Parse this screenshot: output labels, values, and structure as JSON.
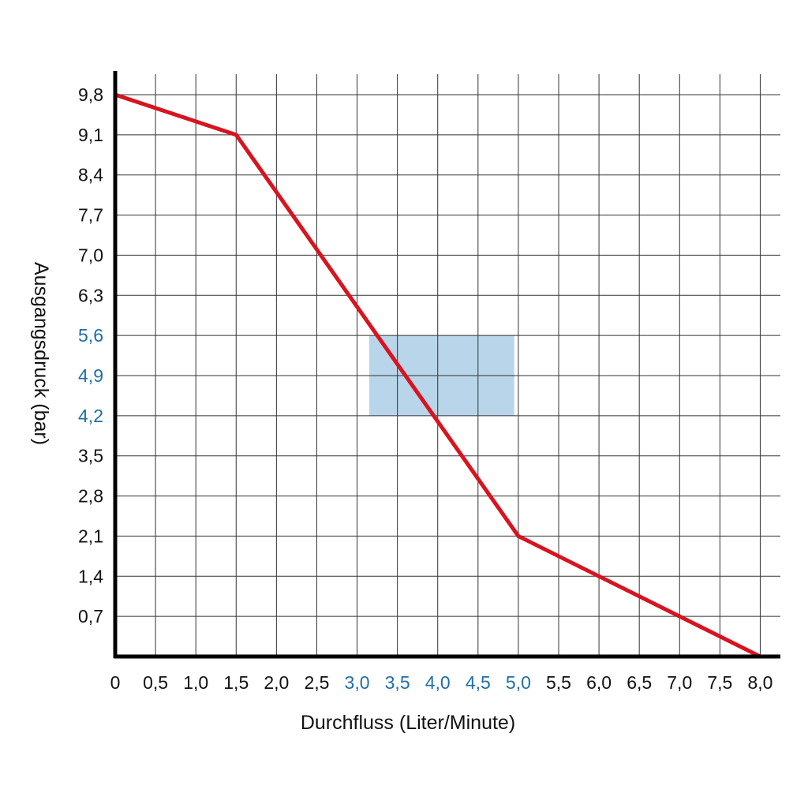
{
  "chart_data": {
    "type": "line",
    "xlabel": "Durchfluss (Liter/Minute)",
    "ylabel": "Ausgangsdruck (bar)",
    "x_ticks": [
      "0",
      "0,5",
      "1,0",
      "1,5",
      "2,0",
      "2,5",
      "3,0",
      "3,5",
      "4,0",
      "4,5",
      "5,0",
      "5,5",
      "6,0",
      "6,5",
      "7,0",
      "7,5",
      "8,0"
    ],
    "y_ticks": [
      "0,7",
      "1,4",
      "2,1",
      "2,8",
      "3,5",
      "4,2",
      "4,9",
      "5,6",
      "6,3",
      "7,0",
      "7,7",
      "8,4",
      "9,1",
      "9,8"
    ],
    "xlim": [
      0,
      8.25
    ],
    "ylim": [
      0,
      9.8
    ],
    "grid": true,
    "highlight_x_ticks": [
      "3,0",
      "3,5",
      "4,0",
      "4,5",
      "5,0"
    ],
    "highlight_y_ticks": [
      "4,2",
      "4,9",
      "5,6"
    ],
    "series": [
      {
        "x": [
          0,
          1.5,
          5.0,
          8.0
        ],
        "y": [
          9.8,
          9.1,
          2.1,
          0.0
        ],
        "color": "#d7141f"
      }
    ],
    "highlight_region": {
      "x": [
        3.15,
        4.95
      ],
      "y": [
        4.2,
        5.6
      ],
      "color": "#b9d5ea"
    },
    "colors": {
      "grid": "#333333",
      "axis": "#000000",
      "tick_text": "#111111",
      "highlight_text": "#1f6ea8"
    }
  }
}
